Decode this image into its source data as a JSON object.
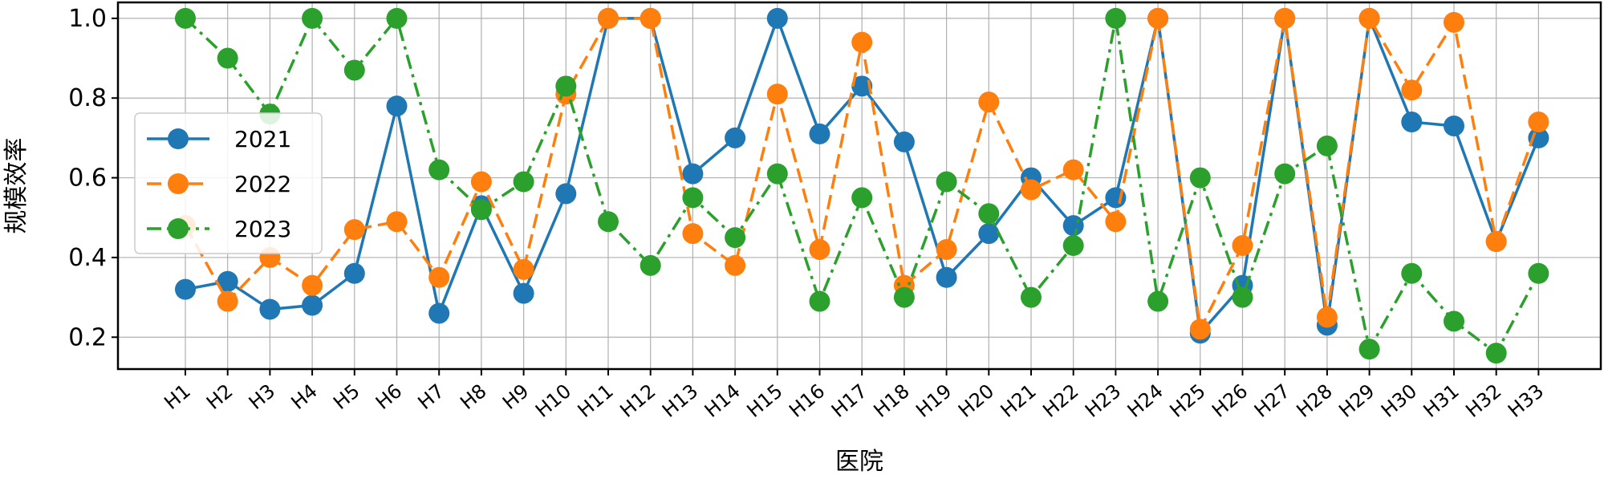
{
  "chart_data": {
    "type": "line",
    "title": "",
    "xlabel": "医院",
    "ylabel": "规模效率",
    "ylim": [
      0.12,
      1.04
    ],
    "yticks": [
      "0.2",
      "0.4",
      "0.6",
      "0.8",
      "1.0"
    ],
    "grid": true,
    "legend_position": "center-left",
    "categories": [
      "H1",
      "H2",
      "H3",
      "H4",
      "H5",
      "H6",
      "H7",
      "H8",
      "H9",
      "H10",
      "H11",
      "H12",
      "H13",
      "H14",
      "H15",
      "H16",
      "H17",
      "H18",
      "H19",
      "H20",
      "H21",
      "H22",
      "H23",
      "H24",
      "H25",
      "H26",
      "H27",
      "H28",
      "H29",
      "H30",
      "H31",
      "H32",
      "H33"
    ],
    "series": [
      {
        "name": "2021",
        "color": "#1f77b4",
        "line_style": "solid",
        "values": [
          0.32,
          0.34,
          0.27,
          0.28,
          0.36,
          0.78,
          0.26,
          0.53,
          0.31,
          0.56,
          1.0,
          1.0,
          0.61,
          0.7,
          1.0,
          0.71,
          0.83,
          0.69,
          0.35,
          0.46,
          0.6,
          0.48,
          0.55,
          1.0,
          0.21,
          0.33,
          1.0,
          0.23,
          1.0,
          0.74,
          0.73,
          0.44,
          0.7
        ]
      },
      {
        "name": "2022",
        "color": "#ff7f0e",
        "line_style": "dashed",
        "values": [
          0.48,
          0.29,
          0.4,
          0.33,
          0.47,
          0.49,
          0.35,
          0.59,
          0.37,
          0.81,
          1.0,
          1.0,
          0.46,
          0.38,
          0.81,
          0.42,
          0.94,
          0.33,
          0.42,
          0.79,
          0.57,
          0.62,
          0.49,
          1.0,
          0.22,
          0.43,
          1.0,
          0.25,
          1.0,
          0.82,
          0.99,
          0.44,
          0.74
        ]
      },
      {
        "name": "2023",
        "color": "#2ca02c",
        "line_style": "dashdot",
        "values": [
          1.0,
          0.9,
          0.76,
          1.0,
          0.87,
          1.0,
          0.62,
          0.52,
          0.59,
          0.83,
          0.49,
          0.38,
          0.55,
          0.45,
          0.61,
          0.29,
          0.55,
          0.3,
          0.59,
          0.51,
          0.3,
          0.43,
          1.0,
          0.29,
          0.6,
          0.3,
          0.61,
          0.68,
          0.17,
          0.36,
          0.24,
          0.16,
          0.36
        ]
      }
    ]
  }
}
